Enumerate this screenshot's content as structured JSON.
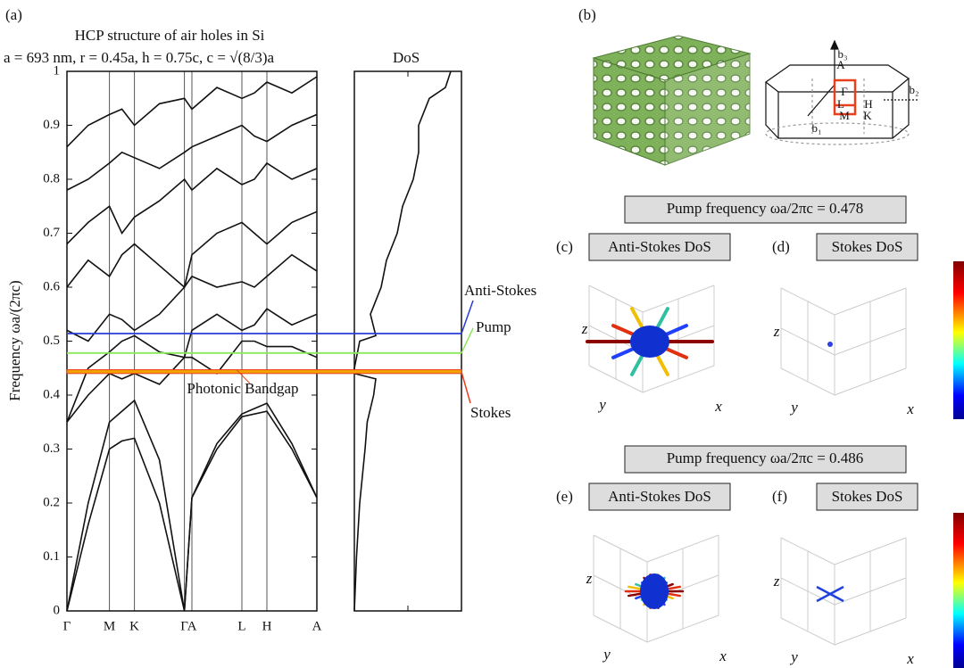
{
  "chart_data": [
    {
      "type": "line",
      "title": "HCP structure of air holes in Si",
      "subtitle": "a = 693 nm, r = 0.45a, h = 0.75c, c = √(8/3)a",
      "y_label": "Frequency ωa/(2πc)",
      "x": [
        0,
        0.085,
        0.17,
        0.22,
        0.27,
        0.37,
        0.47,
        0.5,
        0.6,
        0.7,
        0.75,
        0.8,
        0.9,
        1.0
      ],
      "xlim": [
        0,
        1
      ],
      "ylim": [
        0,
        1
      ],
      "xticks": [
        {
          "value": 0,
          "label": "Γ"
        },
        {
          "value": 0.17,
          "label": "M"
        },
        {
          "value": 0.27,
          "label": "K"
        },
        {
          "value": 0.47,
          "label": "Γ"
        },
        {
          "value": 0.5,
          "label": "A"
        },
        {
          "value": 0.7,
          "label": "L"
        },
        {
          "value": 0.8,
          "label": "H"
        },
        {
          "value": 1.0,
          "label": "A"
        }
      ],
      "yticks": [
        0,
        0.1,
        0.2,
        0.3,
        0.4,
        0.5,
        0.6,
        0.7,
        0.8,
        0.9,
        1
      ],
      "series": [
        {
          "color": "#111111",
          "values": [
            0,
            0.16,
            0.3,
            0.315,
            0.32,
            0.2,
            0,
            0.21,
            0.3,
            0.36,
            0.365,
            0.37,
            0.3,
            0.21
          ]
        },
        {
          "color": "#111111",
          "values": [
            0,
            0.2,
            0.35,
            0.37,
            0.39,
            0.28,
            0,
            0.21,
            0.31,
            0.365,
            0.375,
            0.385,
            0.31,
            0.21
          ]
        },
        {
          "color": "#111111",
          "values": [
            0.35,
            0.4,
            0.44,
            0.43,
            0.44,
            0.42,
            0.47,
            0.47,
            0.44,
            0.5,
            0.5,
            0.49,
            0.49,
            0.47
          ]
        },
        {
          "color": "#111111",
          "values": [
            0.35,
            0.45,
            0.48,
            0.5,
            0.51,
            0.48,
            0.47,
            0.52,
            0.55,
            0.52,
            0.53,
            0.56,
            0.53,
            0.55
          ]
        },
        {
          "color": "#111111",
          "values": [
            0.52,
            0.5,
            0.55,
            0.54,
            0.52,
            0.55,
            0.6,
            0.62,
            0.6,
            0.61,
            0.6,
            0.62,
            0.66,
            0.63
          ]
        },
        {
          "color": "#111111",
          "values": [
            0.6,
            0.65,
            0.62,
            0.66,
            0.68,
            0.64,
            0.6,
            0.66,
            0.7,
            0.72,
            0.7,
            0.68,
            0.72,
            0.74
          ]
        },
        {
          "color": "#111111",
          "values": [
            0.68,
            0.72,
            0.75,
            0.7,
            0.73,
            0.76,
            0.8,
            0.78,
            0.82,
            0.79,
            0.8,
            0.83,
            0.8,
            0.82
          ]
        },
        {
          "color": "#111111",
          "values": [
            0.78,
            0.8,
            0.83,
            0.85,
            0.84,
            0.82,
            0.85,
            0.86,
            0.88,
            0.9,
            0.88,
            0.87,
            0.9,
            0.92
          ]
        },
        {
          "color": "#111111",
          "values": [
            0.86,
            0.9,
            0.92,
            0.93,
            0.9,
            0.94,
            0.95,
            0.93,
            0.97,
            0.95,
            0.96,
            0.98,
            0.96,
            0.99
          ]
        }
      ],
      "annotations": [
        {
          "text": "Anti-Stokes",
          "y": 0.514,
          "color": "#2a3bd8"
        },
        {
          "text": "Pump",
          "y": 0.478,
          "color": "#8ae85a"
        },
        {
          "text": "Stokes",
          "y": 0.443,
          "color": "#e8401c"
        },
        {
          "text": "Photonic Bandgap",
          "y": [
            0.44,
            0.447
          ],
          "color": "#e8401c",
          "fill": "#f2a300"
        }
      ]
    },
    {
      "type": "line",
      "title": "DoS",
      "orientation": "vertical",
      "x": [
        0,
        0.1,
        0.2,
        0.3,
        0.35,
        0.4,
        0.43,
        0.44,
        0.45,
        0.5,
        0.51,
        0.55,
        0.6,
        0.65,
        0.7,
        0.75,
        0.8,
        0.85,
        0.9,
        0.95,
        0.97,
        1.0
      ],
      "values": [
        0,
        0.02,
        0.05,
        0.1,
        0.12,
        0.18,
        0.2,
        0,
        0,
        0.05,
        0.2,
        0.15,
        0.25,
        0.3,
        0.4,
        0.45,
        0.55,
        0.6,
        0.6,
        0.7,
        0.85,
        0.9
      ],
      "xlim": [
        0,
        1
      ],
      "ylim": [
        0,
        1
      ],
      "color": "#111111"
    }
  ],
  "figure": {
    "panel_a": "(a)",
    "panel_b": "(b)",
    "bz_labels": [
      "A",
      "L",
      "H",
      "Γ",
      "M",
      "K",
      "b₁",
      "b₂",
      "b₃"
    ],
    "pump_blocks": [
      "Pump frequency ωa/2πc = 0.478",
      "Pump frequency ωa/2πc = 0.486"
    ],
    "panels": [
      {
        "label": "(c)",
        "title": "Anti-Stokes DoS",
        "axes": [
          "z",
          "y",
          "x"
        ]
      },
      {
        "label": "(d)",
        "title": "Stokes DoS",
        "axes": [
          "z",
          "y",
          "x"
        ]
      },
      {
        "label": "(e)",
        "title": "Anti-Stokes DoS",
        "axes": [
          "z",
          "y",
          "x"
        ]
      },
      {
        "label": "(f)",
        "title": "Stokes DoS",
        "axes": [
          "z",
          "y",
          "x"
        ]
      }
    ]
  }
}
